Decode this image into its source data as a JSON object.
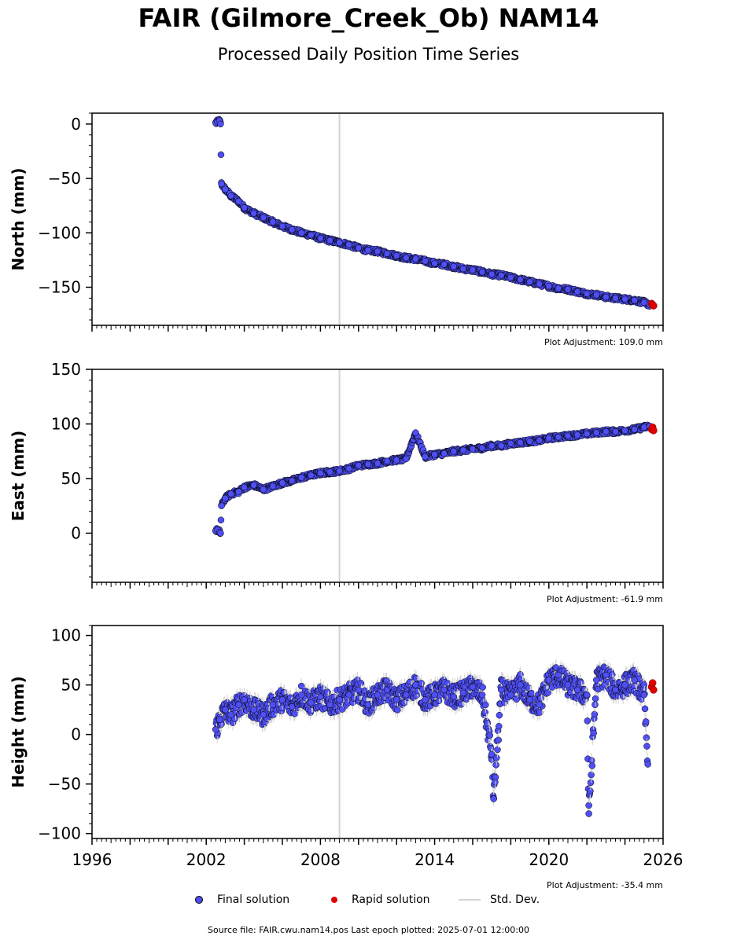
{
  "title": "FAIR (Gilmore_Creek_Ob) NAM14",
  "subtitle": "Processed Daily Position Time Series",
  "legend": {
    "final": "Final solution",
    "rapid": "Rapid solution",
    "std": "Std. Dev."
  },
  "footer": "Source file: FAIR.cwu.nam14.pos  Last epoch plotted: 2025-07-01 12:00:00",
  "colors": {
    "final": "#4f4ff5",
    "rapid": "#e00000",
    "stddev": "#d3d3d3",
    "marker_edge": "#000000"
  },
  "chart_data": [
    {
      "type": "scatter",
      "ylabel": "North (mm)",
      "adjustment_label": "Plot Adjustment: 109.0 mm",
      "ylim": [
        -185,
        10
      ],
      "yticks": [
        0,
        -50,
        -100,
        -150
      ],
      "ytick_labels": [
        "0",
        "−50",
        "−100",
        "−150"
      ],
      "xlim": [
        1996,
        2026
      ],
      "vline_x": 2009.0,
      "show_xtick_labels": false,
      "series": [
        {
          "name": "Final solution",
          "x": [
            2002.5,
            2002.6,
            2002.7,
            2002.75,
            2002.8,
            2003.0,
            2003.3,
            2003.7,
            2004.0,
            2004.5,
            2005.0,
            2005.5,
            2006.0,
            2006.5,
            2007.0,
            2007.5,
            2008.0,
            2008.5,
            2009.0,
            2009.5,
            2010.0,
            2010.5,
            2011.0,
            2011.5,
            2012.0,
            2012.5,
            2013.0,
            2013.5,
            2014.0,
            2014.5,
            2015.0,
            2015.5,
            2016.0,
            2016.5,
            2017.0,
            2017.5,
            2018.0,
            2018.5,
            2019.0,
            2019.5,
            2020.0,
            2020.5,
            2021.0,
            2021.5,
            2022.0,
            2022.5,
            2023.0,
            2023.5,
            2024.0,
            2024.5,
            2025.0,
            2025.3
          ],
          "y": [
            1,
            2,
            3,
            0,
            -55,
            -60,
            -66,
            -71,
            -77,
            -82,
            -86,
            -90,
            -94,
            -97,
            -100,
            -102,
            -105,
            -107,
            -109,
            -111,
            -114,
            -116,
            -117,
            -119,
            -121,
            -123,
            -124,
            -126,
            -128,
            -129,
            -131,
            -133,
            -134,
            -136,
            -138,
            -139,
            -141,
            -143,
            -145,
            -147,
            -149,
            -151,
            -152,
            -154,
            -156,
            -157,
            -159,
            -160,
            -161,
            -162,
            -164,
            -166
          ]
        },
        {
          "name": "Rapid solution",
          "x": [
            2025.4,
            2025.45,
            2025.5
          ],
          "y": [
            -165,
            -166,
            -167
          ]
        }
      ]
    },
    {
      "type": "scatter",
      "ylabel": "East (mm)",
      "adjustment_label": "Plot Adjustment: -61.9 mm",
      "ylim": [
        -45,
        150
      ],
      "yticks": [
        0,
        50,
        100,
        150
      ],
      "ytick_labels": [
        "0",
        "50",
        "100",
        "150"
      ],
      "xlim": [
        1996,
        2026
      ],
      "vline_x": 2009.0,
      "show_xtick_labels": false,
      "series": [
        {
          "name": "Final solution",
          "x": [
            2002.5,
            2002.6,
            2002.7,
            2002.75,
            2002.8,
            2003.0,
            2003.3,
            2003.7,
            2004.0,
            2004.5,
            2005.0,
            2005.5,
            2006.0,
            2006.5,
            2007.0,
            2007.5,
            2008.0,
            2008.5,
            2009.0,
            2009.5,
            2010.0,
            2010.5,
            2011.0,
            2011.5,
            2012.0,
            2012.5,
            2013.0,
            2013.5,
            2014.0,
            2014.5,
            2015.0,
            2015.5,
            2016.0,
            2016.5,
            2017.0,
            2017.5,
            2018.0,
            2018.5,
            2019.0,
            2019.5,
            2020.0,
            2020.5,
            2021.0,
            2021.5,
            2022.0,
            2022.5,
            2023.0,
            2023.5,
            2024.0,
            2024.5,
            2025.0,
            2025.3
          ],
          "y": [
            2,
            3,
            1,
            0,
            25,
            32,
            36,
            38,
            42,
            44,
            40,
            43,
            46,
            48,
            51,
            53,
            55,
            56,
            57,
            59,
            62,
            63,
            64,
            66,
            67,
            68,
            92,
            70,
            72,
            73,
            75,
            76,
            77,
            78,
            80,
            80,
            82,
            83,
            84,
            85,
            87,
            88,
            89,
            90,
            91,
            92,
            93,
            93,
            94,
            95,
            97,
            98
          ]
        },
        {
          "name": "Rapid solution",
          "x": [
            2025.4,
            2025.45,
            2025.5
          ],
          "y": [
            95,
            97,
            94
          ]
        }
      ]
    },
    {
      "type": "scatter",
      "ylabel": "Height (mm)",
      "adjustment_label": "Plot Adjustment: -35.4 mm",
      "ylim": [
        -105,
        110
      ],
      "yticks": [
        100,
        50,
        0,
        -50,
        -100
      ],
      "ytick_labels": [
        "100",
        "50",
        "0",
        "−50",
        "−100"
      ],
      "xlim": [
        1996,
        2026
      ],
      "xticks": [
        1996,
        2002,
        2008,
        2014,
        2020,
        2026
      ],
      "xtick_labels": [
        "1996",
        "2002",
        "2008",
        "2014",
        "2020",
        "2026"
      ],
      "vline_x": 2009.0,
      "show_xtick_labels": true,
      "series": [
        {
          "name": "Final solution",
          "x": [
            2002.5,
            2002.7,
            2003.0,
            2003.3,
            2003.7,
            2004.0,
            2004.5,
            2005.0,
            2005.5,
            2006.0,
            2006.5,
            2007.0,
            2007.5,
            2008.0,
            2008.5,
            2009.0,
            2009.5,
            2010.0,
            2010.5,
            2011.0,
            2011.5,
            2012.0,
            2012.5,
            2013.0,
            2013.5,
            2014.0,
            2014.5,
            2015.0,
            2015.5,
            2016.0,
            2016.5,
            2017.0,
            2017.1,
            2017.5,
            2018.0,
            2018.5,
            2019.0,
            2019.5,
            2020.0,
            2020.5,
            2021.0,
            2021.5,
            2022.0,
            2022.1,
            2022.5,
            2023.0,
            2023.5,
            2024.0,
            2024.5,
            2025.0,
            2025.2
          ],
          "y": [
            5,
            15,
            25,
            20,
            30,
            35,
            25,
            20,
            30,
            35,
            28,
            40,
            32,
            38,
            30,
            35,
            40,
            45,
            30,
            40,
            45,
            35,
            40,
            50,
            35,
            40,
            45,
            38,
            42,
            48,
            40,
            -20,
            -65,
            45,
            40,
            50,
            35,
            30,
            55,
            60,
            50,
            45,
            40,
            -80,
            55,
            60,
            45,
            50,
            55,
            40,
            -30
          ]
        },
        {
          "name": "Rapid solution",
          "x": [
            2025.4,
            2025.45,
            2025.5
          ],
          "y": [
            48,
            52,
            45
          ]
        }
      ]
    }
  ]
}
